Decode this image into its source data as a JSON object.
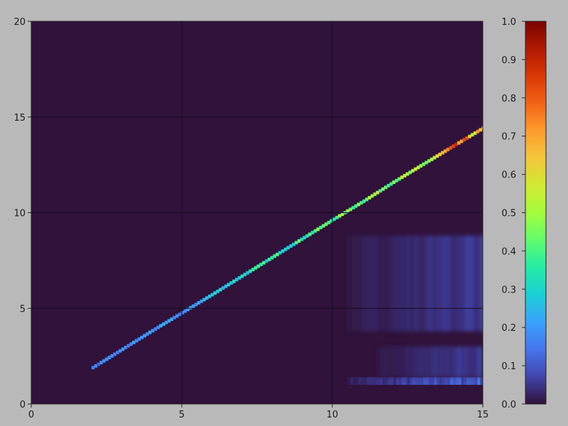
{
  "chart_data": {
    "type": "heatmap",
    "title": "",
    "xlabel": "",
    "ylabel": "",
    "xlim": [
      0,
      15
    ],
    "ylim": [
      0,
      20
    ],
    "x_ticks": [
      0,
      5,
      10,
      15
    ],
    "y_ticks": [
      0,
      5,
      10,
      15,
      20
    ],
    "x_tick_labels": [
      "0",
      "5",
      "10",
      "15"
    ],
    "y_tick_labels": [
      "0",
      "5",
      "10",
      "15",
      "20"
    ],
    "grid": true,
    "colormap": "turbo",
    "colorbar": {
      "range": [
        0.0,
        1.0
      ],
      "ticks": [
        0.0,
        0.1,
        0.2,
        0.3,
        0.4,
        0.5,
        0.6,
        0.7,
        0.8,
        0.9,
        1.0
      ],
      "tick_labels": [
        "0.0",
        "0.1",
        "0.2",
        "0.3",
        "0.4",
        "0.5",
        "0.6",
        "0.7",
        "0.8",
        "0.9",
        "1.0"
      ]
    },
    "background_value": 0.0,
    "diagonal_band": {
      "x": [
        2.0,
        4.0,
        5.0,
        6.0,
        8.0,
        10.0,
        11.0,
        12.0,
        13.0,
        14.0,
        15.0
      ],
      "y": [
        1.9,
        3.85,
        4.8,
        5.75,
        7.7,
        9.65,
        10.6,
        11.6,
        12.55,
        13.5,
        14.45
      ],
      "intensity": [
        0.15,
        0.2,
        0.18,
        0.28,
        0.35,
        0.42,
        0.48,
        0.5,
        0.45,
        0.75,
        0.6
      ]
    },
    "diffuse_regions": [
      {
        "x": [
          10.5,
          15
        ],
        "y": [
          1,
          1.4
        ],
        "intensity": [
          0.02,
          0.12
        ]
      },
      {
        "x": [
          11.5,
          15
        ],
        "y": [
          1.4,
          3.0
        ],
        "intensity": [
          0.01,
          0.06
        ]
      },
      {
        "x": [
          10.5,
          15
        ],
        "y": [
          3.8,
          8.8
        ],
        "intensity": [
          0.01,
          0.06
        ]
      }
    ]
  },
  "colors": {
    "background": "#b9b9b9",
    "plot_background": "#30123b",
    "grid": "#1a0a22",
    "colorbar_stops": [
      "#30123b",
      "#4145ab",
      "#4675ed",
      "#39a2fc",
      "#1bcfd4",
      "#24eca6",
      "#61fc6c",
      "#a4fc3b",
      "#d1e834",
      "#f3c63a",
      "#fe9b2d",
      "#f36315",
      "#d93806",
      "#b11901",
      "#7a0402"
    ]
  }
}
